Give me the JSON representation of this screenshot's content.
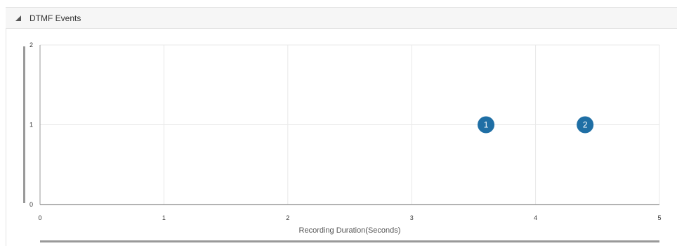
{
  "panel": {
    "title": "DTMF Events",
    "collapse_icon": "triangle-collapse-icon"
  },
  "colors": {
    "marker": "#1f6fa5",
    "grid": "#e8e8e8",
    "axis": "#9a9a9a",
    "scrollbar": "#999999"
  },
  "chart_data": {
    "type": "scatter",
    "title": "",
    "xlabel": "Recording Duration(Seconds)",
    "ylabel": "",
    "xlim": [
      0,
      5
    ],
    "ylim": [
      0,
      2
    ],
    "x_ticks": [
      "0",
      "1",
      "2",
      "3",
      "4",
      "5"
    ],
    "y_ticks": [
      "0",
      "1",
      "2"
    ],
    "grid": true,
    "legend": "none",
    "points": [
      {
        "x": 3.6,
        "y": 1,
        "label": "1"
      },
      {
        "x": 4.4,
        "y": 1,
        "label": "2"
      }
    ]
  }
}
